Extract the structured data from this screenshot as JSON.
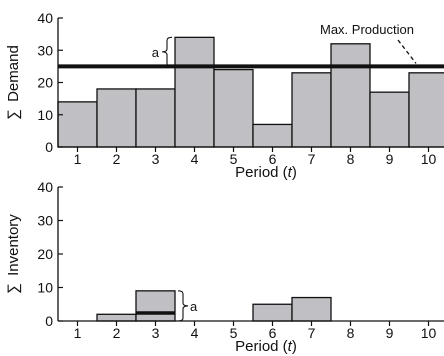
{
  "chart_data": [
    {
      "type": "bar",
      "categories": [
        "1",
        "2",
        "3",
        "4",
        "5",
        "6",
        "7",
        "8",
        "9",
        "10"
      ],
      "values": [
        14,
        18,
        18,
        34,
        24,
        7,
        23,
        32,
        17,
        23
      ],
      "xlabel_prefix": "Period (",
      "xlabel_var": "t",
      "xlabel_suffix": ")",
      "ylabel_sym": "∑",
      "ylabel_text": "Demand",
      "yticks": [
        0,
        10,
        20,
        30,
        40
      ],
      "ylim": [
        0,
        40
      ],
      "reference_line": {
        "label": "Max. Production",
        "value": 25
      },
      "bracket": {
        "label": "a",
        "from": 25,
        "to": 34,
        "category": "4"
      },
      "bar_color": "#c0c0c4"
    },
    {
      "type": "bar",
      "categories": [
        "1",
        "2",
        "3",
        "4",
        "5",
        "6",
        "7",
        "8",
        "9",
        "10"
      ],
      "values": [
        0,
        2,
        9,
        0,
        0,
        5,
        7,
        0,
        0,
        0
      ],
      "xlabel_prefix": "Period (",
      "xlabel_var": "t",
      "xlabel_suffix": ")",
      "ylabel_sym": "∑",
      "ylabel_text": "Inventory",
      "yticks": [
        0,
        10,
        20,
        30,
        40
      ],
      "ylim": [
        0,
        40
      ],
      "marker": {
        "category": "3",
        "value": 2.4
      },
      "bracket": {
        "label": "a",
        "from": 0,
        "to": 9,
        "category": "3"
      },
      "bar_color": "#c0c0c4"
    }
  ]
}
